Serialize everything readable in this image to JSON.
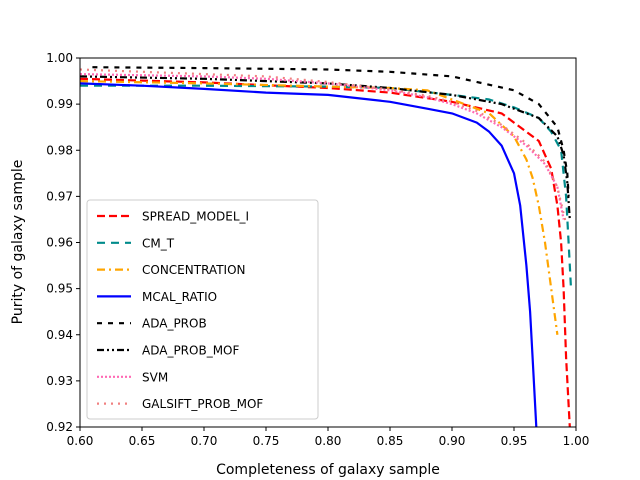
{
  "chart_data": {
    "type": "line",
    "xlabel": "Completeness of galaxy sample",
    "ylabel": "Purity of galaxy sample",
    "xlim": [
      0.6,
      1.0
    ],
    "ylim": [
      0.92,
      1.0
    ],
    "xticks": [
      "0.60",
      "0.65",
      "0.70",
      "0.75",
      "0.80",
      "0.85",
      "0.90",
      "0.95",
      "1.00"
    ],
    "yticks": [
      "0.92",
      "0.93",
      "0.94",
      "0.95",
      "0.96",
      "0.97",
      "0.98",
      "0.99",
      "1.00"
    ],
    "legend_position": "lower-left",
    "series": [
      {
        "name": "SPREAD_MODEL_I",
        "color": "#ff0000",
        "dash": "8,4",
        "x": [
          0.6,
          0.7,
          0.8,
          0.85,
          0.9,
          0.94,
          0.97,
          0.98,
          0.985,
          0.988,
          0.99,
          0.992,
          0.995
        ],
        "y": [
          0.9955,
          0.9947,
          0.9935,
          0.9925,
          0.9905,
          0.988,
          0.982,
          0.976,
          0.968,
          0.96,
          0.95,
          0.935,
          0.92
        ]
      },
      {
        "name": "CM_T",
        "color": "#008b8b",
        "dash": "8,6",
        "x": [
          0.6,
          0.7,
          0.8,
          0.85,
          0.9,
          0.93,
          0.95,
          0.97,
          0.98,
          0.988,
          0.992,
          0.994,
          0.996
        ],
        "y": [
          0.994,
          0.994,
          0.9938,
          0.9935,
          0.992,
          0.991,
          0.9893,
          0.987,
          0.984,
          0.98,
          0.97,
          0.96,
          0.95
        ]
      },
      {
        "name": "CONCENTRATION",
        "color": "#ffa500",
        "dash": "8,4,2,4",
        "x": [
          0.6,
          0.7,
          0.8,
          0.85,
          0.88,
          0.91,
          0.93,
          0.95,
          0.96,
          0.965,
          0.97,
          0.975,
          0.98,
          0.985
        ],
        "y": [
          0.995,
          0.9945,
          0.9938,
          0.9935,
          0.993,
          0.99,
          0.988,
          0.983,
          0.978,
          0.974,
          0.968,
          0.96,
          0.95,
          0.94
        ]
      },
      {
        "name": "MCAL_RATIO",
        "color": "#0000ff",
        "dash": "",
        "x": [
          0.6,
          0.65,
          0.7,
          0.75,
          0.8,
          0.85,
          0.88,
          0.9,
          0.92,
          0.93,
          0.94,
          0.95,
          0.955,
          0.96,
          0.963,
          0.965,
          0.968
        ],
        "y": [
          0.9945,
          0.994,
          0.9933,
          0.9925,
          0.992,
          0.9905,
          0.989,
          0.988,
          0.986,
          0.984,
          0.981,
          0.975,
          0.968,
          0.955,
          0.945,
          0.935,
          0.92
        ]
      },
      {
        "name": "ADA_PROB",
        "color": "#000000",
        "dash": "5,6",
        "x": [
          0.61,
          0.7,
          0.8,
          0.85,
          0.9,
          0.95,
          0.97,
          0.985,
          0.99,
          0.993,
          0.994
        ],
        "y": [
          0.998,
          0.9978,
          0.9975,
          0.997,
          0.996,
          0.993,
          0.99,
          0.985,
          0.98,
          0.975,
          0.97
        ]
      },
      {
        "name": "ADA_PROB_MOF",
        "color": "#000000",
        "dash": "7,3,2,3,2,3",
        "x": [
          0.6,
          0.7,
          0.8,
          0.85,
          0.9,
          0.94,
          0.97,
          0.985,
          0.99,
          0.993,
          0.995
        ],
        "y": [
          0.996,
          0.9955,
          0.9945,
          0.9935,
          0.992,
          0.99,
          0.987,
          0.983,
          0.979,
          0.973,
          0.965
        ]
      },
      {
        "name": "SVM",
        "color": "#ff69b4",
        "dash": "2,2",
        "x": [
          0.6,
          0.7,
          0.75,
          0.8,
          0.85,
          0.88,
          0.9,
          0.92,
          0.94,
          0.96,
          0.975,
          0.985,
          0.99
        ],
        "y": [
          0.9965,
          0.996,
          0.9955,
          0.9945,
          0.993,
          0.9915,
          0.99,
          0.988,
          0.985,
          0.981,
          0.977,
          0.972,
          0.965
        ]
      },
      {
        "name": "GALSIFT_PROB_MOF",
        "color": "#f08080",
        "dash": "2,5",
        "x": [
          0.6,
          0.7,
          0.75,
          0.8,
          0.85,
          0.88,
          0.9,
          0.92,
          0.94,
          0.96,
          0.975,
          0.985,
          0.992
        ],
        "y": [
          0.9975,
          0.9965,
          0.996,
          0.9948,
          0.9932,
          0.9918,
          0.9905,
          0.9885,
          0.9855,
          0.9815,
          0.9775,
          0.972,
          0.964
        ]
      }
    ]
  }
}
